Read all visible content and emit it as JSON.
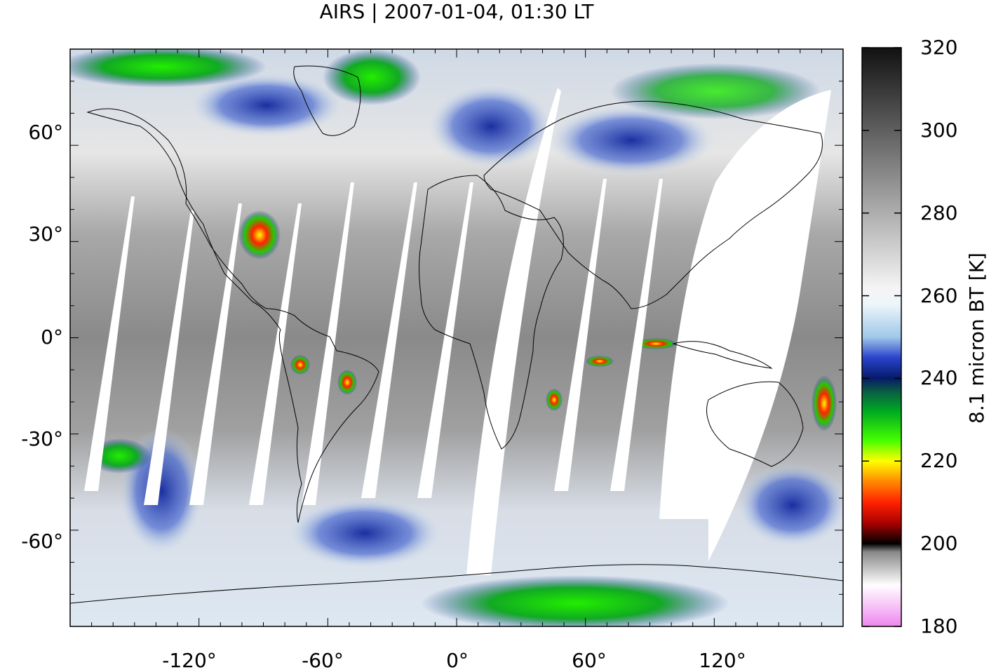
{
  "title": "AIRS | 2007-01-04, 01:30 LT",
  "axes": {
    "x_ticks": [
      "-120°",
      "-60°",
      "0°",
      "60°",
      "120°"
    ],
    "y_ticks": [
      "60°",
      "30°",
      "0°",
      "-30°",
      "-60°"
    ]
  },
  "colorbar": {
    "label": "8.1 micron BT [K]",
    "ticks": [
      "320",
      "300",
      "280",
      "260",
      "240",
      "220",
      "200",
      "180"
    ],
    "range": [
      180,
      320
    ],
    "stops": [
      {
        "value": 180,
        "color": "#ee88ee"
      },
      {
        "value": 190,
        "color": "#ffffff"
      },
      {
        "value": 198,
        "color": "#888888"
      },
      {
        "value": 200,
        "color": "#000000"
      },
      {
        "value": 205,
        "color": "#aa0000"
      },
      {
        "value": 210,
        "color": "#ff2200"
      },
      {
        "value": 215,
        "color": "#ff8800"
      },
      {
        "value": 220,
        "color": "#ffff00"
      },
      {
        "value": 225,
        "color": "#44ff00"
      },
      {
        "value": 232,
        "color": "#00aa22"
      },
      {
        "value": 237,
        "color": "#0a5a44"
      },
      {
        "value": 240,
        "color": "#061a6a"
      },
      {
        "value": 245,
        "color": "#2a44cc"
      },
      {
        "value": 250,
        "color": "#a0c8e8"
      },
      {
        "value": 258,
        "color": "#eef6fa"
      },
      {
        "value": 262,
        "color": "#f4f4f4"
      },
      {
        "value": 320,
        "color": "#111111"
      }
    ]
  }
}
